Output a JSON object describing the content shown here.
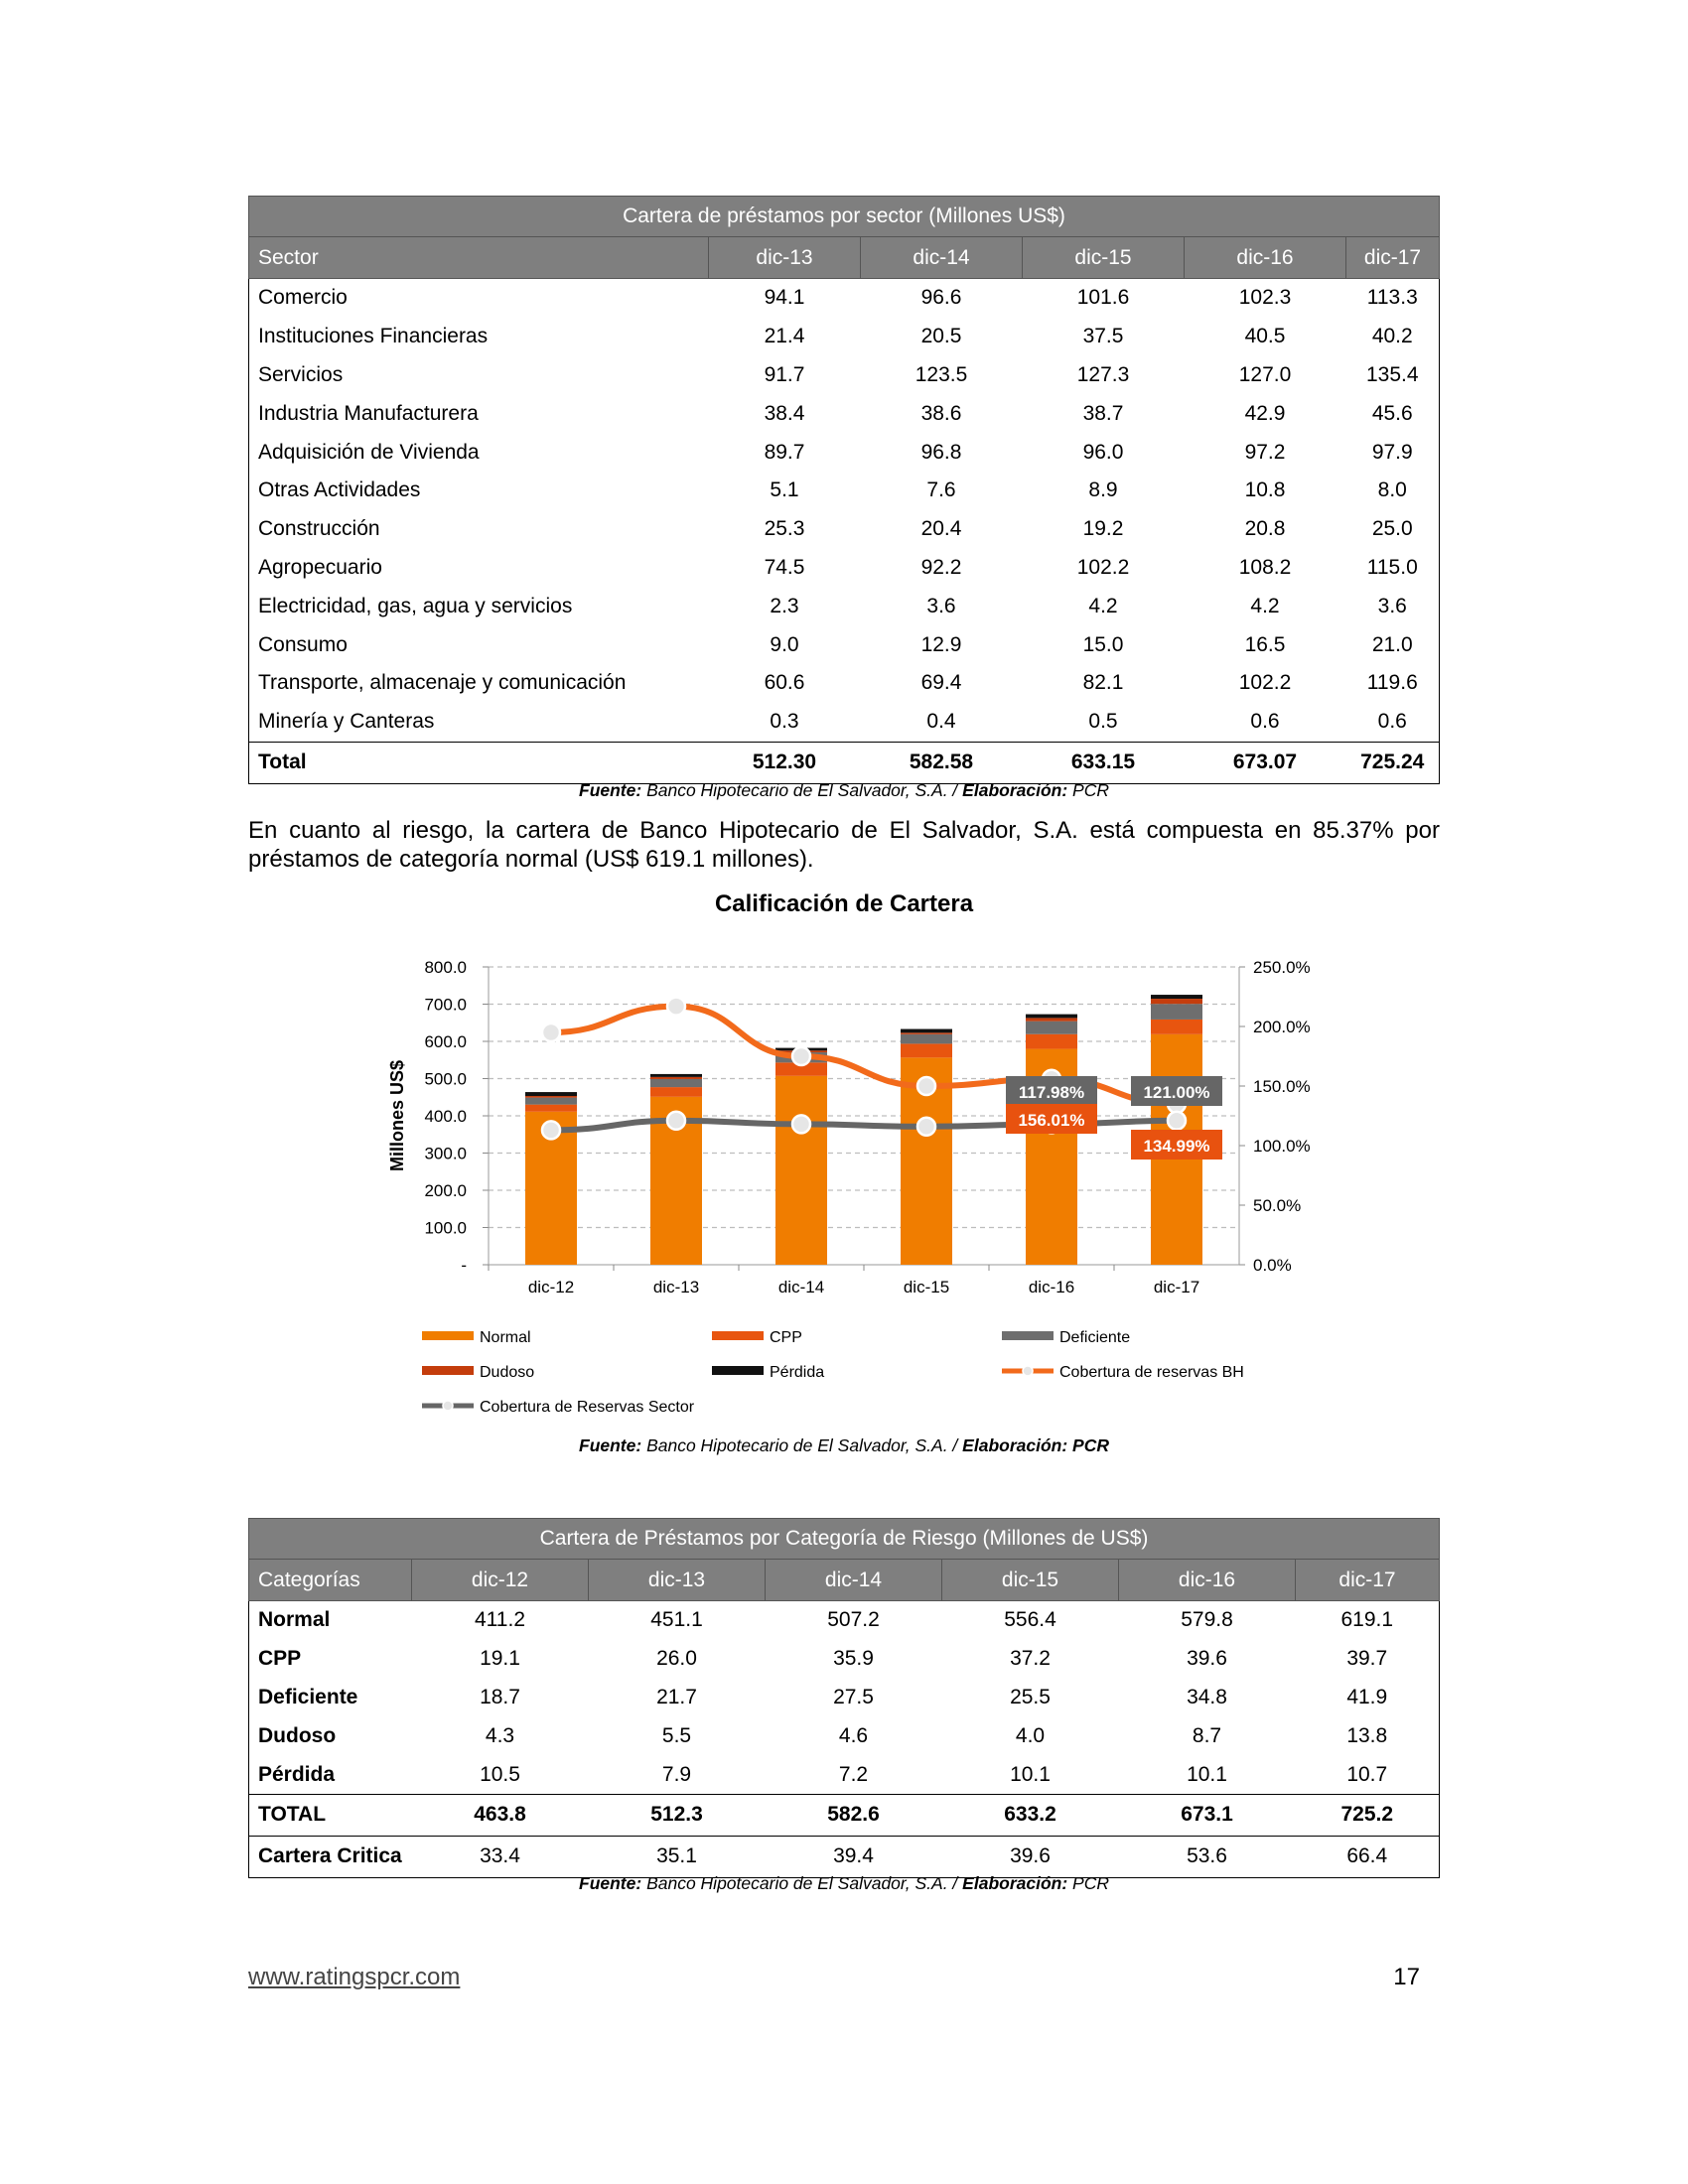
{
  "table1": {
    "title": "Cartera de préstamos por sector  (Millones US$)",
    "headers": [
      "Sector",
      "dic-13",
      "dic-14",
      "dic-15",
      "dic-16",
      "dic-17"
    ],
    "rows": [
      [
        "Comercio",
        "94.1",
        "96.6",
        "101.6",
        "102.3",
        "113.3"
      ],
      [
        "Instituciones Financieras",
        "21.4",
        "20.5",
        "37.5",
        "40.5",
        "40.2"
      ],
      [
        "Servicios",
        "91.7",
        "123.5",
        "127.3",
        "127.0",
        "135.4"
      ],
      [
        "Industria Manufacturera",
        "38.4",
        "38.6",
        "38.7",
        "42.9",
        "45.6"
      ],
      [
        "Adquisición de Vivienda",
        "89.7",
        "96.8",
        "96.0",
        "97.2",
        "97.9"
      ],
      [
        "Otras Actividades",
        "5.1",
        "7.6",
        "8.9",
        "10.8",
        "8.0"
      ],
      [
        "Construcción",
        "25.3",
        "20.4",
        "19.2",
        "20.8",
        "25.0"
      ],
      [
        "Agropecuario",
        "74.5",
        "92.2",
        "102.2",
        "108.2",
        "115.0"
      ],
      [
        "Electricidad, gas, agua y servicios",
        "2.3",
        "3.6",
        "4.2",
        "4.2",
        "3.6"
      ],
      [
        "Consumo",
        "9.0",
        "12.9",
        "15.0",
        "16.5",
        "21.0"
      ],
      [
        "Transporte, almacenaje y comunicación",
        "60.6",
        "69.4",
        "82.1",
        "102.2",
        "119.6"
      ],
      [
        "Minería y Canteras",
        "0.3",
        "0.4",
        "0.5",
        "0.6",
        "0.6"
      ]
    ],
    "total": [
      "Total",
      "512.30",
      "582.58",
      "633.15",
      "673.07",
      "725.24"
    ]
  },
  "source": {
    "label": "Fuente:",
    "text": " Banco Hipotecario de El Salvador, S.A. / ",
    "elab_label": "Elaboración:",
    "elab_text": " PCR"
  },
  "paragraph": "En cuanto al riesgo, la cartera de Banco Hipotecario de El Salvador, S.A. está compuesta en 85.37% por préstamos de categoría normal (US$ 619.1 millones).",
  "chart_data": {
    "type": "bar",
    "stacked": true,
    "title": "Calificación de Cartera",
    "ylabel": "Millones US$",
    "ylim": [
      0,
      800
    ],
    "y2lim": [
      0,
      250
    ],
    "yticks": [
      "-",
      "100.0",
      "200.0",
      "300.0",
      "400.0",
      "500.0",
      "600.0",
      "700.0",
      "800.0"
    ],
    "y2ticks": [
      "0.0%",
      "50.0%",
      "100.0%",
      "150.0%",
      "200.0%",
      "250.0%"
    ],
    "categories": [
      "dic-12",
      "dic-13",
      "dic-14",
      "dic-15",
      "dic-16",
      "dic-17"
    ],
    "series": [
      {
        "name": "Normal",
        "values": [
          411.2,
          451.1,
          507.2,
          556.4,
          579.8,
          619.1
        ],
        "color": "#f07d00"
      },
      {
        "name": "CPP",
        "values": [
          19.1,
          26.0,
          35.9,
          37.2,
          39.6,
          39.7
        ],
        "color": "#e8550f"
      },
      {
        "name": "Deficiente",
        "values": [
          18.7,
          21.7,
          27.5,
          25.5,
          34.8,
          41.9
        ],
        "color": "#6e6e6e"
      },
      {
        "name": "Dudoso",
        "values": [
          4.3,
          5.5,
          4.6,
          4.0,
          8.7,
          13.8
        ],
        "color": "#c43d0c"
      },
      {
        "name": "Pérdida",
        "values": [
          10.5,
          7.9,
          7.2,
          10.1,
          10.1,
          10.7
        ],
        "color": "#111111"
      }
    ],
    "lines": [
      {
        "name": "Cobertura de reservas BH",
        "axis": "right",
        "values": [
          195,
          217,
          175,
          150,
          156.01,
          134.99
        ],
        "color": "#f26a1b"
      },
      {
        "name": "Cobertura de Reservas Sector",
        "axis": "right",
        "values": [
          113,
          121,
          118,
          116,
          117.98,
          121.0
        ],
        "color": "#666666"
      }
    ],
    "data_labels": [
      {
        "text": "117.98%",
        "color": "#666666"
      },
      {
        "text": "121.00%",
        "color": "#666666"
      },
      {
        "text": "156.01%",
        "color": "#e8520f"
      },
      {
        "text": "134.99%",
        "color": "#e8520f"
      }
    ],
    "legend_placement": "bottom",
    "grid": true
  },
  "table2": {
    "title": "Cartera de Préstamos por Categoría de Riesgo  (Millones de US$)",
    "headers": [
      "Categorías",
      "dic-12",
      "dic-13",
      "dic-14",
      "dic-15",
      "dic-16",
      "dic-17"
    ],
    "rows": [
      [
        "Normal",
        "411.2",
        "451.1",
        "507.2",
        "556.4",
        "579.8",
        "619.1"
      ],
      [
        "CPP",
        "19.1",
        "26.0",
        "35.9",
        "37.2",
        "39.6",
        "39.7"
      ],
      [
        "Deficiente",
        "18.7",
        "21.7",
        "27.5",
        "25.5",
        "34.8",
        "41.9"
      ],
      [
        "Dudoso",
        "4.3",
        "5.5",
        "4.6",
        "4.0",
        "8.7",
        "13.8"
      ],
      [
        "Pérdida",
        "10.5",
        "7.9",
        "7.2",
        "10.1",
        "10.1",
        "10.7"
      ]
    ],
    "total": [
      "TOTAL",
      "463.8",
      "512.3",
      "582.6",
      "633.2",
      "673.1",
      "725.2"
    ],
    "critical": [
      "Cartera Critica",
      "33.4",
      "35.1",
      "39.4",
      "39.6",
      "53.6",
      "66.4"
    ]
  },
  "footer": {
    "website": "www.ratingspcr.com",
    "page": "17"
  }
}
